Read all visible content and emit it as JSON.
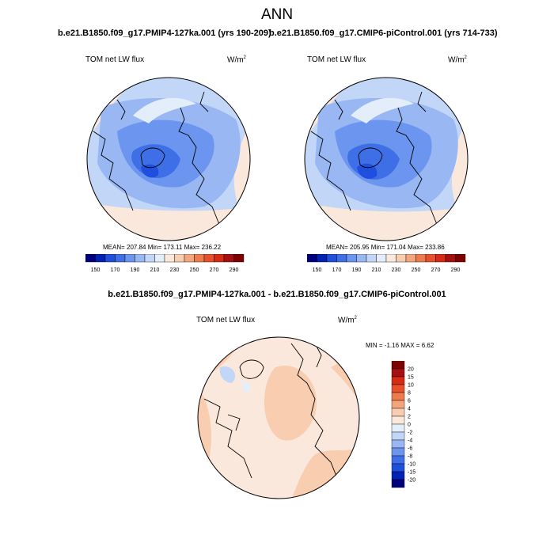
{
  "title": "ANN",
  "panels": [
    {
      "case_title": "b.e21.B1850.f09_g17.PMIP4-127ka.001 (yrs 190-209)",
      "variable": "TOM net LW flux",
      "units": "W/m",
      "units_sup": "2",
      "stats": "MEAN= 207.84  Min= 173.11  Max= 236.22"
    },
    {
      "case_title": "b.e21.B1850.f09_g17.CMIP6-piControl.001 (yrs 714-733)",
      "variable": "TOM net LW flux",
      "units": "W/m",
      "units_sup": "2",
      "stats": "MEAN= 205.95  Min= 171.04  Max= 233.86"
    }
  ],
  "colorbar": {
    "labels": [
      "150",
      "170",
      "190",
      "210",
      "230",
      "250",
      "270",
      "290"
    ],
    "colors": [
      "#00007f",
      "#0022b5",
      "#1f4fdc",
      "#3e6fe6",
      "#6b95ee",
      "#98b7f3",
      "#c2d6f7",
      "#e4eefb",
      "#fbe8dc",
      "#f8cdb0",
      "#f4a57c",
      "#ef7a4c",
      "#e8502a",
      "#d42b12",
      "#a50f0f",
      "#7f0000"
    ]
  },
  "diff": {
    "title": "b.e21.B1850.f09_g17.PMIP4-127ka.001 - b.e21.B1850.f09_g17.CMIP6-piControl.001",
    "variable": "TOM net LW flux",
    "units": "W/m",
    "units_sup": "2",
    "stats": "MIN =  -1.16 MAX =   6.62",
    "colorbar": {
      "labels": [
        "20",
        "15",
        "10",
        "8",
        "6",
        "4",
        "2",
        "0",
        "-2",
        "-4",
        "-6",
        "-8",
        "-10",
        "-15",
        "-20"
      ],
      "colors": [
        "#7f0000",
        "#a50f0f",
        "#d42b12",
        "#e8502a",
        "#ef7a4c",
        "#f4a57c",
        "#f8cdb0",
        "#fbe8dc",
        "#e4eefb",
        "#c2d6f7",
        "#98b7f3",
        "#6b95ee",
        "#3e6fe6",
        "#1f4fdc",
        "#0022b5",
        "#00007f"
      ]
    }
  }
}
